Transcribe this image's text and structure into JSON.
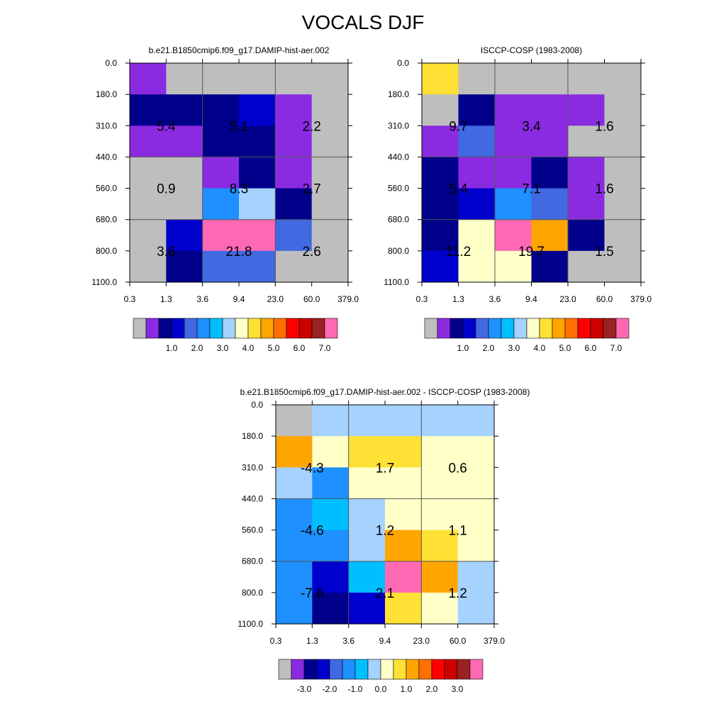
{
  "title": "VOCALS DJF",
  "x_ticks": [
    "0.3",
    "1.3",
    "3.6",
    "9.4",
    "23.0",
    "60.0",
    "379.0"
  ],
  "y_ticks": [
    "0.0",
    "180.0",
    "310.0",
    "440.0",
    "560.0",
    "680.0",
    "800.0",
    "1100.0"
  ],
  "chart_data": [
    {
      "type": "heatmap",
      "title": "b.e21.B1850cmip6.f09_g17.DAMIP-hist-aer.002",
      "colorbar": {
        "colors": [
          "#BEBEBE",
          "#8A2BE2",
          "#00008B",
          "#0000CD",
          "#4169E1",
          "#1E90FF",
          "#00BFFF",
          "#A6D2FF",
          "#FFFFC8",
          "#FFE135",
          "#FFA500",
          "#FF7000",
          "#FF0000",
          "#CD0000",
          "#9B2222",
          "#FF69B4"
        ],
        "labels": [
          "1.0",
          "2.0",
          "3.0",
          "4.0",
          "5.0",
          "6.0",
          "7.0"
        ],
        "label_boundaries": [
          3,
          5,
          7,
          9,
          11,
          13,
          15
        ]
      },
      "cells": [
        [
          1,
          0,
          0,
          0,
          0,
          0
        ],
        [
          2,
          2,
          2,
          3,
          1,
          0
        ],
        [
          1,
          1,
          2,
          2,
          1,
          0
        ],
        [
          0,
          0,
          1,
          2,
          1,
          0
        ],
        [
          0,
          0,
          5,
          7,
          2,
          0
        ],
        [
          0,
          3,
          15,
          15,
          4,
          0
        ],
        [
          0,
          2,
          4,
          4,
          0,
          0
        ]
      ],
      "annotations": [
        {
          "row": 1,
          "col": 0,
          "text": "5.4"
        },
        {
          "row": 1,
          "col": 2,
          "text": "5.1"
        },
        {
          "row": 1,
          "col": 4,
          "text": "2.2"
        },
        {
          "row": 3,
          "col": 0,
          "text": "0.9"
        },
        {
          "row": 3,
          "col": 2,
          "text": "8.3"
        },
        {
          "row": 3,
          "col": 4,
          "text": "2.7"
        },
        {
          "row": 5,
          "col": 0,
          "text": "3.6"
        },
        {
          "row": 5,
          "col": 2,
          "text": "21.8"
        },
        {
          "row": 5,
          "col": 4,
          "text": "2.6"
        }
      ]
    },
    {
      "type": "heatmap",
      "title": "ISCCP-COSP (1983-2008)",
      "colorbar": {
        "colors": [
          "#BEBEBE",
          "#8A2BE2",
          "#00008B",
          "#0000CD",
          "#4169E1",
          "#1E90FF",
          "#00BFFF",
          "#A6D2FF",
          "#FFFFC8",
          "#FFE135",
          "#FFA500",
          "#FF7000",
          "#FF0000",
          "#CD0000",
          "#9B2222",
          "#FF69B4"
        ],
        "labels": [
          "1.0",
          "2.0",
          "3.0",
          "4.0",
          "5.0",
          "6.0",
          "7.0"
        ],
        "label_boundaries": [
          3,
          5,
          7,
          9,
          11,
          13,
          15
        ]
      },
      "cells": [
        [
          9,
          0,
          0,
          0,
          0,
          0
        ],
        [
          0,
          2,
          1,
          1,
          1,
          0
        ],
        [
          1,
          4,
          1,
          1,
          0,
          0
        ],
        [
          2,
          1,
          1,
          2,
          1,
          0
        ],
        [
          2,
          3,
          5,
          4,
          1,
          0
        ],
        [
          2,
          8,
          15,
          10,
          2,
          0
        ],
        [
          3,
          8,
          8,
          2,
          0,
          0
        ]
      ],
      "annotations": [
        {
          "row": 1,
          "col": 0,
          "text": "9.7"
        },
        {
          "row": 1,
          "col": 2,
          "text": "3.4"
        },
        {
          "row": 1,
          "col": 4,
          "text": "1.6"
        },
        {
          "row": 3,
          "col": 0,
          "text": "5.4"
        },
        {
          "row": 3,
          "col": 2,
          "text": "7.1"
        },
        {
          "row": 3,
          "col": 4,
          "text": "1.6"
        },
        {
          "row": 5,
          "col": 0,
          "text": "11.2"
        },
        {
          "row": 5,
          "col": 2,
          "text": "19.7"
        },
        {
          "row": 5,
          "col": 4,
          "text": "1.5"
        }
      ]
    },
    {
      "type": "heatmap",
      "title": "b.e21.B1850cmip6.f09_g17.DAMIP-hist-aer.002 - ISCCP-COSP (1983-2008)",
      "colorbar": {
        "colors": [
          "#BEBEBE",
          "#8A2BE2",
          "#00008B",
          "#0000CD",
          "#4169E1",
          "#1E90FF",
          "#00BFFF",
          "#A6D2FF",
          "#FFFFC8",
          "#FFE135",
          "#FFA500",
          "#FF7000",
          "#FF0000",
          "#CD0000",
          "#9B2222",
          "#FF69B4"
        ],
        "labels": [
          "-3.0",
          "-2.0",
          "-1.0",
          "0.0",
          "1.0",
          "2.0",
          "3.0"
        ],
        "label_boundaries": [
          2,
          4,
          6,
          8,
          10,
          12,
          14
        ]
      },
      "cells": [
        [
          0,
          7,
          7,
          7,
          7,
          7
        ],
        [
          10,
          8,
          9,
          9,
          8,
          8
        ],
        [
          7,
          5,
          8,
          8,
          8,
          8
        ],
        [
          5,
          6,
          7,
          8,
          8,
          8
        ],
        [
          5,
          5,
          7,
          10,
          9,
          8
        ],
        [
          5,
          3,
          6,
          15,
          10,
          7
        ],
        [
          5,
          2,
          3,
          9,
          8,
          7
        ]
      ],
      "annotations": [
        {
          "row": 1,
          "col": 0,
          "text": "-4.3"
        },
        {
          "row": 1,
          "col": 2,
          "text": "1.7"
        },
        {
          "row": 1,
          "col": 4,
          "text": "0.6"
        },
        {
          "row": 3,
          "col": 0,
          "text": "-4.6"
        },
        {
          "row": 3,
          "col": 2,
          "text": "1.2"
        },
        {
          "row": 3,
          "col": 4,
          "text": "1.1"
        },
        {
          "row": 5,
          "col": 0,
          "text": "-7.6"
        },
        {
          "row": 5,
          "col": 2,
          "text": "2.1"
        },
        {
          "row": 5,
          "col": 4,
          "text": "1.2"
        }
      ]
    }
  ]
}
